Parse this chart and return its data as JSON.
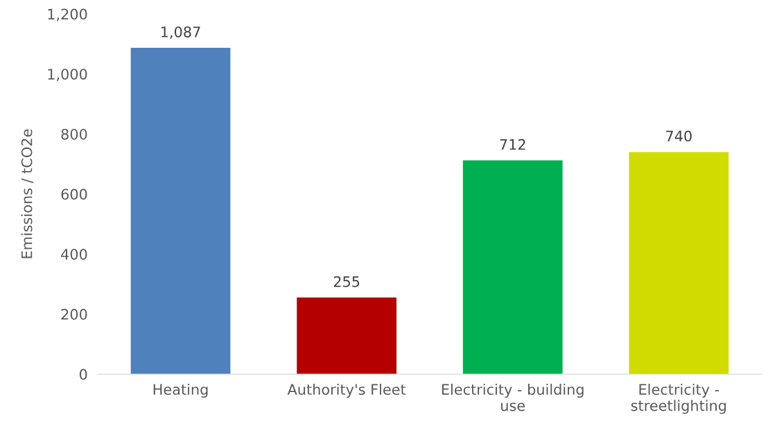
{
  "chart_data": {
    "type": "bar",
    "ylabel": "Emissions / tCO2e",
    "categories": [
      "Heating",
      "Authority's Fleet",
      "Electricity - building\nuse",
      "Electricity -\nstreetlighting"
    ],
    "values": [
      1087,
      255,
      712,
      740
    ],
    "colors": [
      "#4f81bd",
      "#b50000",
      "#00b050",
      "#d0dc00"
    ],
    "value_labels": [
      "1,087",
      "255",
      "712",
      "740"
    ],
    "ylim": [
      0,
      1200
    ],
    "yticks": [
      0,
      200,
      400,
      600,
      800,
      {
        "value": 1000,
        "label": "1,000"
      },
      {
        "value": 1200,
        "label": "1,200"
      }
    ],
    "grid": false,
    "legend": false
  }
}
